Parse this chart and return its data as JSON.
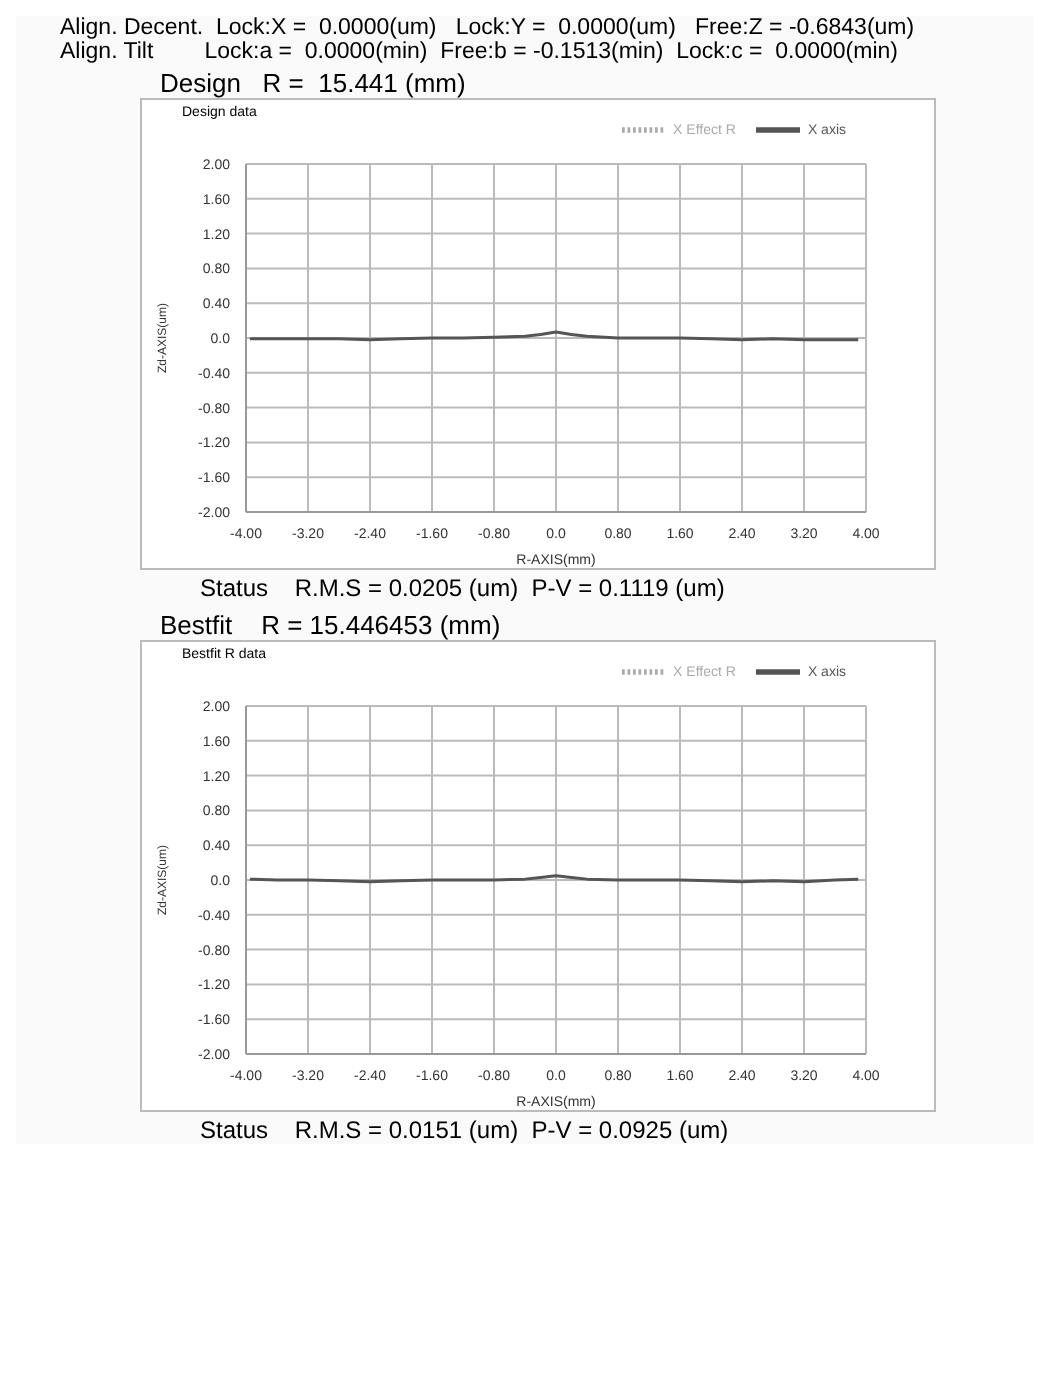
{
  "chart_data": [
    {
      "type": "line",
      "title": "Design   R =  15.441 (mm)",
      "subtitle": "Design data",
      "xlabel": "R-AXIS(mm)",
      "ylabel": "Zd-AXIS(um)",
      "annotations": [
        "Align. Decent.  Lock:X =  0.0000(um)   Lock:Y =  0.0000(um)   Free:Z = -0.6843(um)",
        "Align. Tilt        Lock:a =  0.0000(min)  Free:b = -0.1513(min)  Lock:c =  0.0000(min)",
        "Status    R.M.S = 0.0205 (um)  P-V = 0.1119 (um)"
      ],
      "x": [
        -3.95,
        -3.6,
        -3.2,
        -2.8,
        -2.4,
        -2.0,
        -1.6,
        -1.2,
        -0.8,
        -0.4,
        -0.2,
        0.0,
        0.2,
        0.4,
        0.8,
        1.2,
        1.6,
        2.0,
        2.4,
        2.8,
        3.2,
        3.6,
        3.9
      ],
      "series": [
        {
          "name": "X axis",
          "color": "#555555",
          "line_style": "solid",
          "values": [
            -0.01,
            -0.01,
            -0.01,
            -0.01,
            -0.02,
            -0.01,
            0.0,
            0.0,
            0.01,
            0.02,
            0.04,
            0.07,
            0.04,
            0.02,
            0.0,
            0.0,
            0.0,
            -0.01,
            -0.02,
            -0.01,
            -0.02,
            -0.02,
            -0.02
          ]
        },
        {
          "name": "X Effect R",
          "color": "#aaaaaa",
          "line_style": "dotted",
          "values": [
            null,
            null,
            null,
            null,
            null,
            null,
            null,
            null,
            null,
            null,
            null,
            null,
            null,
            null,
            null,
            null,
            null,
            null,
            null,
            null,
            null,
            null,
            null
          ]
        }
      ],
      "xlim": [
        -4,
        4
      ],
      "xticks": [
        {
          "value": -4,
          "label": "-4.00"
        },
        {
          "value": -3.2,
          "label": "-3.20"
        },
        {
          "value": -2.4,
          "label": "-2.40"
        },
        {
          "value": -1.6,
          "label": "-1.60"
        },
        {
          "value": -0.8,
          "label": "-0.80"
        },
        {
          "value": 0,
          "label": "0.0"
        },
        {
          "value": 0.8,
          "label": "0.80"
        },
        {
          "value": 1.6,
          "label": "1.60"
        },
        {
          "value": 2.4,
          "label": "2.40"
        },
        {
          "value": 3.2,
          "label": "3.20"
        },
        {
          "value": 4,
          "label": "4.00"
        }
      ],
      "ylim": [
        -2,
        2
      ],
      "yticks": [
        {
          "value": -2,
          "label": "-2.00"
        },
        {
          "value": -1.6,
          "label": "-1.60"
        },
        {
          "value": -1.2,
          "label": "-1.20"
        },
        {
          "value": -0.8,
          "label": "-0.80"
        },
        {
          "value": -0.4,
          "label": "-0.40"
        },
        {
          "value": 0,
          "label": "0.0"
        },
        {
          "value": 0.4,
          "label": "0.40"
        },
        {
          "value": 0.8,
          "label": "0.80"
        },
        {
          "value": 1.2,
          "label": "1.20"
        },
        {
          "value": 1.6,
          "label": "1.60"
        },
        {
          "value": 2,
          "label": "2.00"
        }
      ],
      "grid": true,
      "legend": "top right",
      "marker": "none"
    },
    {
      "type": "line",
      "title": "Bestfit    R = 15.446453 (mm)",
      "subtitle": "Bestfit R data",
      "xlabel": "R-AXIS(mm)",
      "ylabel": "Zd-AXIS(um)",
      "annotations": [
        "Status    R.M.S = 0.0151 (um)  P-V = 0.0925 (um)"
      ],
      "x": [
        -3.95,
        -3.6,
        -3.2,
        -2.8,
        -2.4,
        -2.0,
        -1.6,
        -1.2,
        -0.8,
        -0.4,
        -0.2,
        0.0,
        0.2,
        0.4,
        0.8,
        1.2,
        1.6,
        2.0,
        2.4,
        2.8,
        3.2,
        3.6,
        3.9
      ],
      "series": [
        {
          "name": "X axis",
          "color": "#555555",
          "line_style": "solid",
          "values": [
            0.01,
            0.0,
            0.0,
            -0.01,
            -0.02,
            -0.01,
            0.0,
            0.0,
            0.0,
            0.01,
            0.03,
            0.05,
            0.03,
            0.01,
            0.0,
            0.0,
            0.0,
            -0.01,
            -0.02,
            -0.01,
            -0.02,
            0.0,
            0.01
          ]
        },
        {
          "name": "X Effect R",
          "color": "#aaaaaa",
          "line_style": "dotted",
          "values": [
            null,
            null,
            null,
            null,
            null,
            null,
            null,
            null,
            null,
            null,
            null,
            null,
            null,
            null,
            null,
            null,
            null,
            null,
            null,
            null,
            null,
            null,
            null
          ]
        }
      ],
      "xlim": [
        -4,
        4
      ],
      "xticks": [
        {
          "value": -4,
          "label": "-4.00"
        },
        {
          "value": -3.2,
          "label": "-3.20"
        },
        {
          "value": -2.4,
          "label": "-2.40"
        },
        {
          "value": -1.6,
          "label": "-1.60"
        },
        {
          "value": -0.8,
          "label": "-0.80"
        },
        {
          "value": 0,
          "label": "0.0"
        },
        {
          "value": 0.8,
          "label": "0.80"
        },
        {
          "value": 1.6,
          "label": "1.60"
        },
        {
          "value": 2.4,
          "label": "2.40"
        },
        {
          "value": 3.2,
          "label": "3.20"
        },
        {
          "value": 4,
          "label": "4.00"
        }
      ],
      "ylim": [
        -2,
        2
      ],
      "yticks": [
        {
          "value": -2,
          "label": "-2.00"
        },
        {
          "value": -1.6,
          "label": "-1.60"
        },
        {
          "value": -1.2,
          "label": "-1.20"
        },
        {
          "value": -0.8,
          "label": "-0.80"
        },
        {
          "value": -0.4,
          "label": "-0.40"
        },
        {
          "value": 0,
          "label": "0.0"
        },
        {
          "value": 0.4,
          "label": "0.40"
        },
        {
          "value": 0.8,
          "label": "0.80"
        },
        {
          "value": 1.2,
          "label": "1.20"
        },
        {
          "value": 1.6,
          "label": "1.60"
        },
        {
          "value": 2,
          "label": "2.00"
        }
      ],
      "grid": true,
      "legend": "top right",
      "marker": "none"
    }
  ]
}
